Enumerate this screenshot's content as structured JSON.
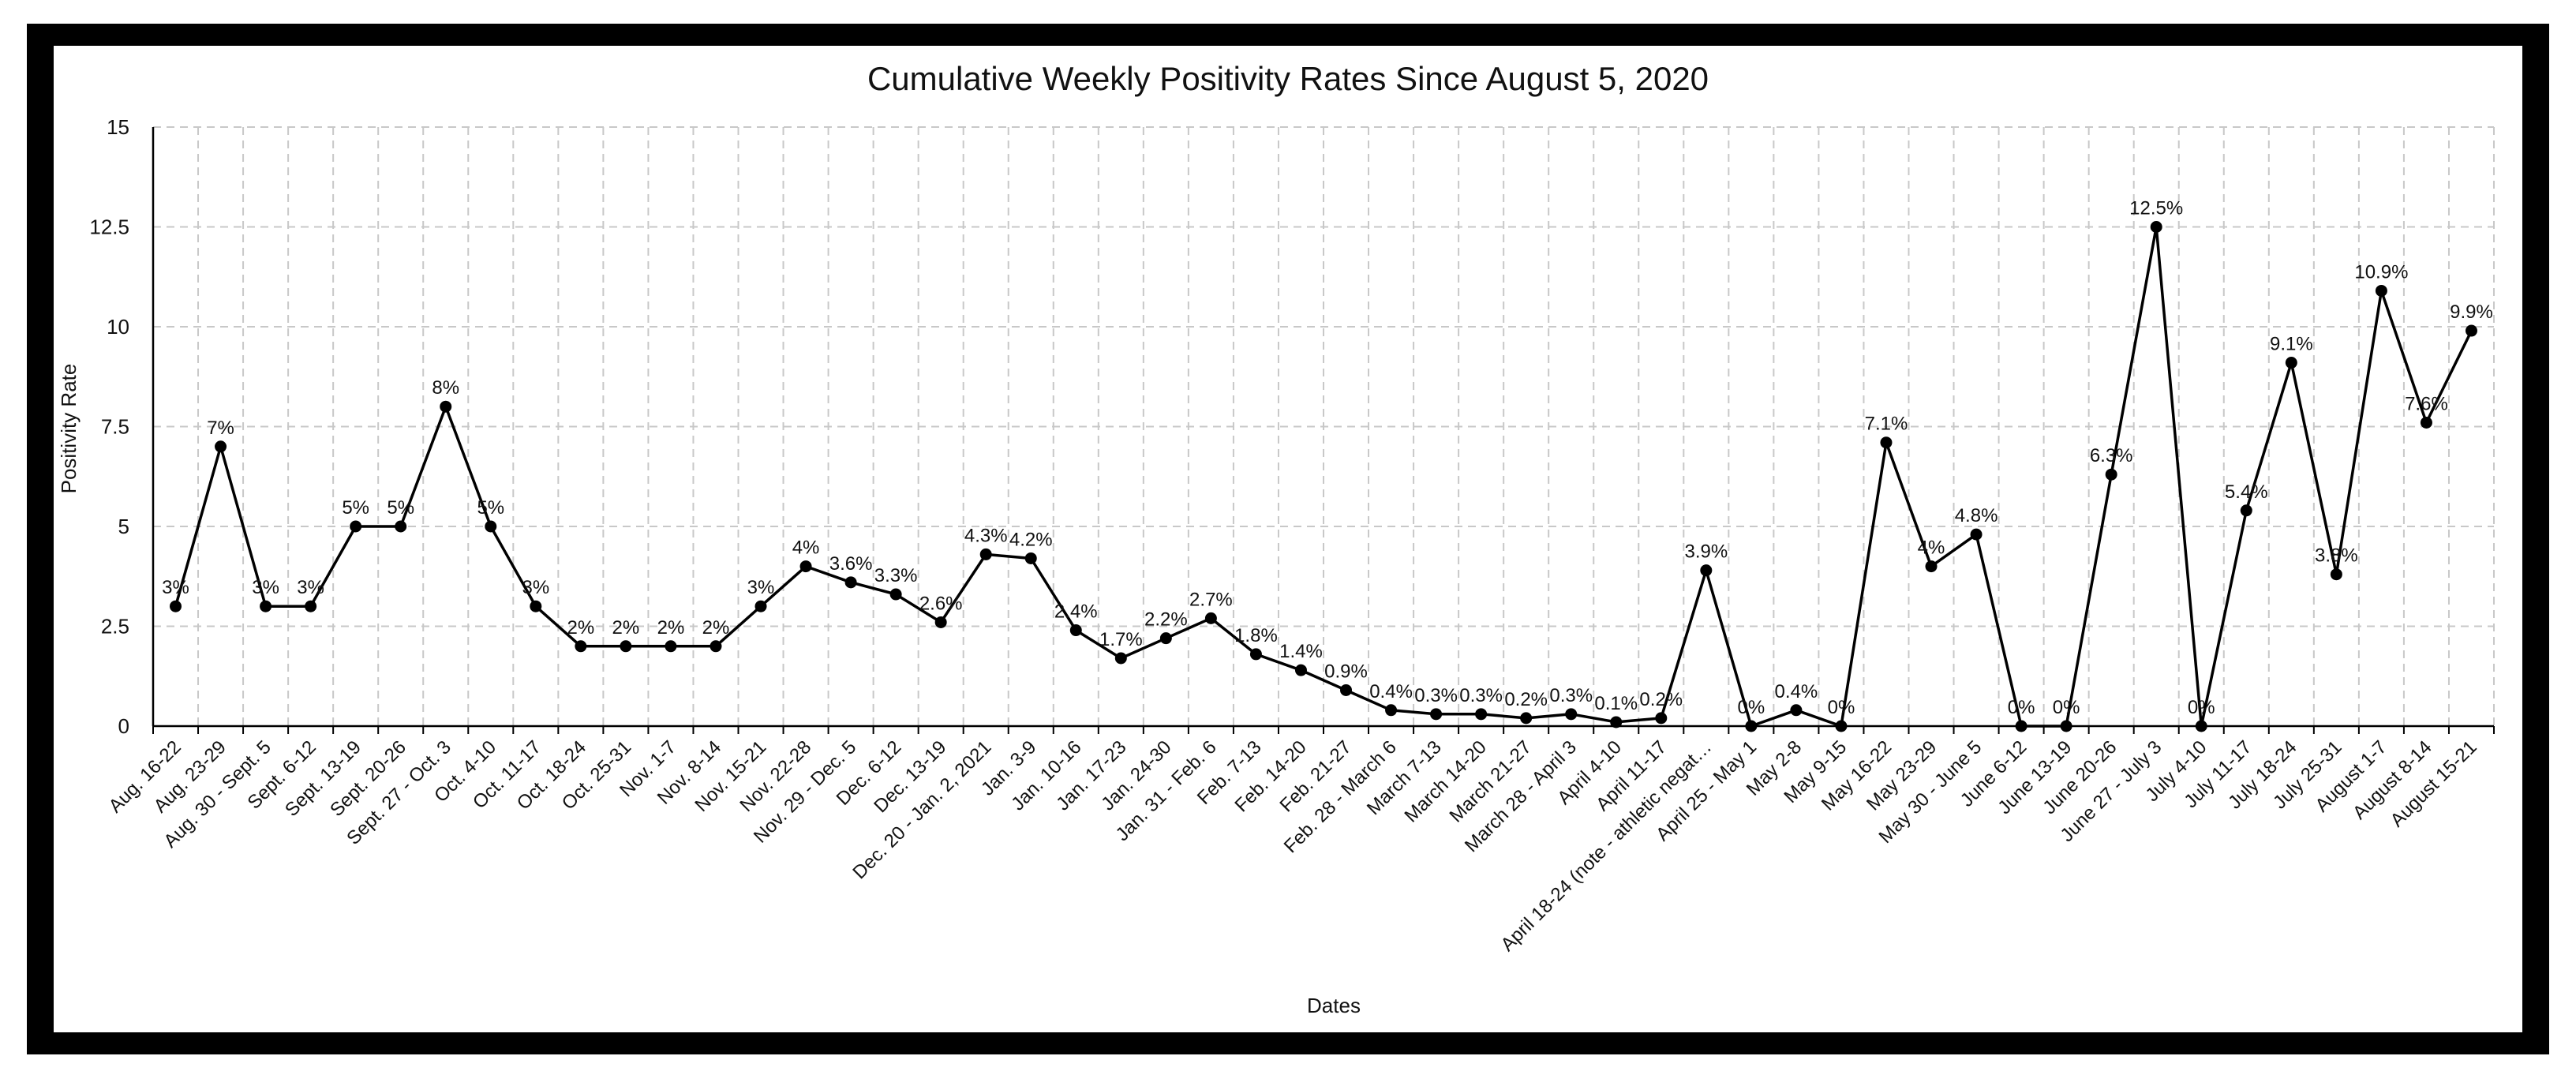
{
  "chart_data": {
    "type": "line",
    "title": "Cumulative Weekly Positivity Rates Since August 5, 2020",
    "xlabel": "Dates",
    "ylabel": "Positivity Rate",
    "ylim": [
      0,
      15
    ],
    "yticks": [
      "0",
      "2.5",
      "5",
      "7.5",
      "10",
      "12.5",
      "15"
    ],
    "ytick_values": [
      0,
      2.5,
      5,
      7.5,
      10,
      12.5,
      15
    ],
    "grid": true,
    "categories": [
      "Aug. 16-22",
      "Aug. 23-29",
      "Aug. 30 - Sept. 5",
      "Sept. 6-12",
      "Sept. 13-19",
      "Sept. 20-26",
      "Sept. 27 - Oct. 3",
      "Oct. 4-10",
      "Oct. 11-17",
      "Oct. 18-24",
      "Oct. 25-31",
      "Nov. 1-7",
      "Nov. 8-14",
      "Nov. 15-21",
      "Nov. 22-28",
      "Nov. 29 - Dec. 5",
      "Dec. 6-12",
      "Dec. 13-19",
      "Dec. 20 - Jan. 2, 2021",
      "Jan. 3-9",
      "Jan. 10-16",
      "Jan. 17-23",
      "Jan. 24-30",
      "Jan. 31 - Feb. 6",
      "Feb. 7-13",
      "Feb. 14-20",
      "Feb. 21-27",
      "Feb. 28 - March 6",
      "March 7-13",
      "March 14-20",
      "March 21-27",
      "March 28 - April 3",
      "April 4-10",
      "April 11-17",
      "April 18-24 (note - athletic negat…",
      "April 25 - May 1",
      "May 2-8",
      "May 9-15",
      "May 16-22",
      "May 23-29",
      "May 30 - June 5",
      "June 6-12",
      "June 13-19",
      "June 20-26",
      "June 27 - July 3",
      "July 4-10",
      "July 11-17",
      "July 18-24",
      "July 25-31",
      "August 1-7",
      "August 8-14",
      "August 15-21"
    ],
    "values": [
      3,
      7,
      3,
      3,
      5,
      5,
      8,
      5,
      3,
      2,
      2,
      2,
      2,
      3,
      4,
      3.6,
      3.3,
      2.6,
      4.3,
      4.2,
      2.4,
      1.7,
      2.2,
      2.7,
      1.8,
      1.4,
      0.9,
      0.4,
      0.3,
      0.3,
      0.2,
      0.3,
      0.1,
      0.2,
      3.9,
      0,
      0.4,
      0,
      7.1,
      4,
      4.8,
      0,
      0,
      6.3,
      12.5,
      0,
      5.4,
      9.1,
      3.8,
      10.9,
      7.6,
      9.9
    ],
    "labels": [
      "3%",
      "7%",
      "3%",
      "3%",
      "5%",
      "5%",
      "8%",
      "5%",
      "3%",
      "2%",
      "2%",
      "2%",
      "2%",
      "3%",
      "4%",
      "3.6%",
      "3.3%",
      "2.6%",
      "4.3%",
      "4.2%",
      "2.4%",
      "1.7%",
      "2.2%",
      "2.7%",
      "1.8%",
      "1.4%",
      "0.9%",
      "0.4%",
      "0.3%",
      "0.3%",
      "0.2%",
      "0.3%",
      "0.1%",
      "0.2%",
      "3.9%",
      "0%",
      "0.4%",
      "0%",
      "7.1%",
      "4%",
      "4.8%",
      "0%",
      "0%",
      "6.3%",
      "12.5%",
      "0%",
      "5.4%",
      "9.1%",
      "3.8%",
      "10.9%",
      "7.6%",
      "9.9%"
    ],
    "colors": {
      "line": "#000000",
      "grid": "#c8c8c8",
      "border": "#000000",
      "background": "#ffffff"
    }
  }
}
